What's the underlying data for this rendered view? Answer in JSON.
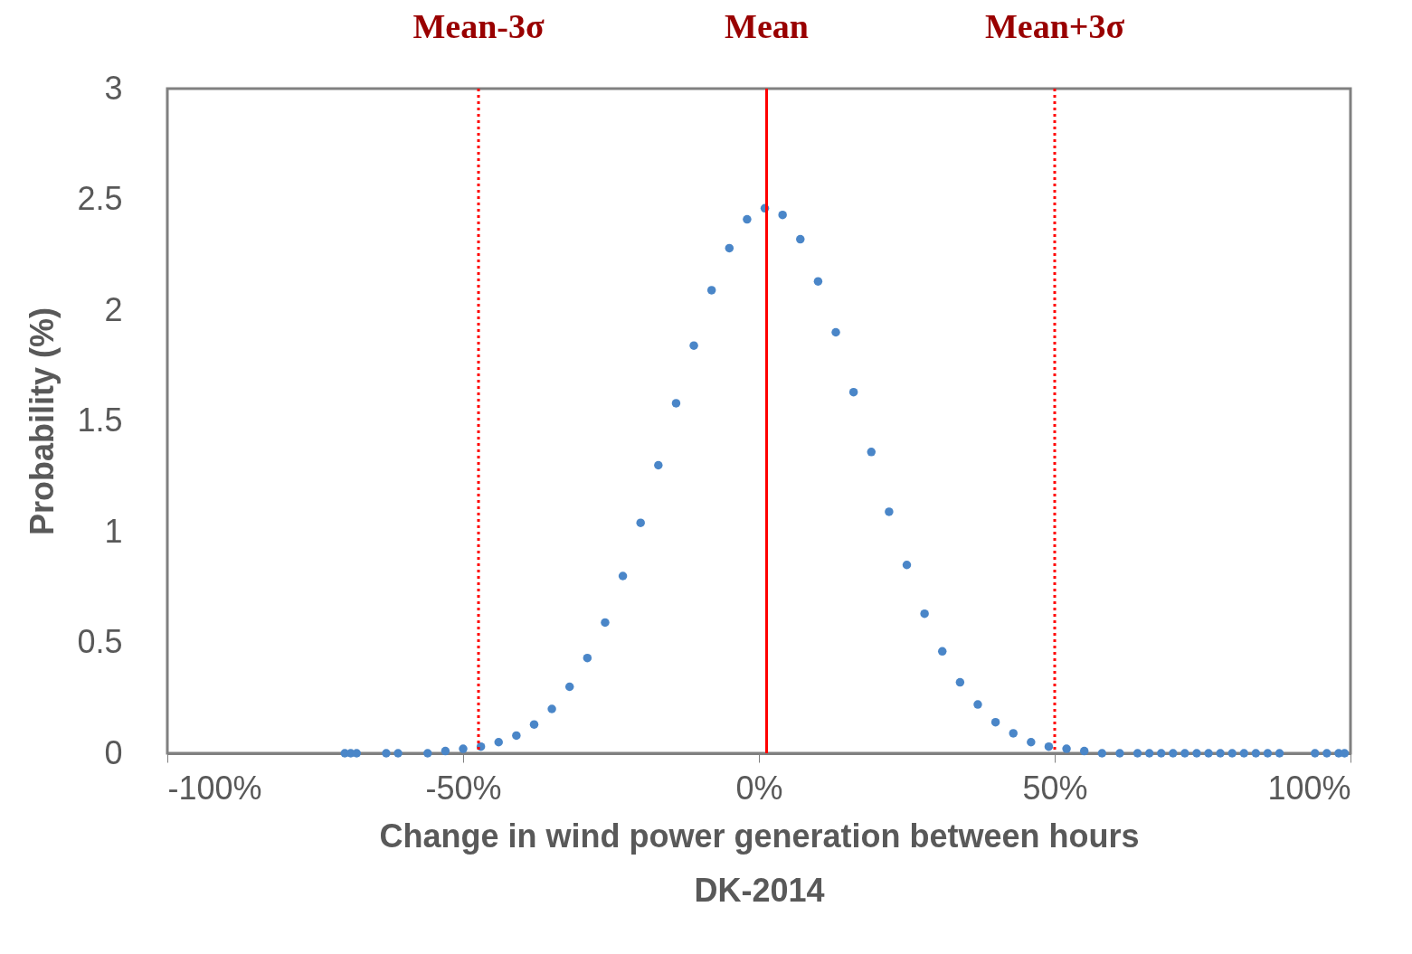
{
  "chart_data": {
    "type": "scatter",
    "xlabel": "Change in wind power generation between hours\nDK-2014",
    "ylabel": "Probability (%)",
    "x": [
      -70,
      -69,
      -68,
      -63,
      -61,
      -56,
      -53,
      -50,
      -47,
      -44,
      -41,
      -38,
      -35,
      -32,
      -29,
      -26,
      -23,
      -20,
      -17,
      -14,
      -11,
      -8,
      -5,
      -2,
      1,
      4,
      7,
      10,
      13,
      16,
      19,
      22,
      25,
      28,
      31,
      34,
      37,
      40,
      43,
      46,
      49,
      52,
      55,
      58,
      61,
      64,
      66,
      68,
      70,
      72,
      74,
      76,
      78,
      80,
      82,
      84,
      86,
      88,
      94,
      96,
      98,
      99
    ],
    "series": [
      {
        "color": "#4a86c8",
        "values": [
          0,
          0,
          0,
          0,
          0,
          0,
          0.01,
          0.02,
          0.03,
          0.05,
          0.08,
          0.13,
          0.2,
          0.3,
          0.43,
          0.59,
          0.8,
          1.04,
          1.3,
          1.58,
          1.84,
          2.09,
          2.28,
          2.41,
          2.46,
          2.43,
          2.32,
          2.13,
          1.9,
          1.63,
          1.36,
          1.09,
          0.85,
          0.63,
          0.46,
          0.32,
          0.22,
          0.14,
          0.09,
          0.05,
          0.03,
          0.02,
          0.01,
          0,
          0,
          0,
          0,
          0,
          0,
          0,
          0,
          0,
          0,
          0,
          0,
          0,
          0,
          0,
          0,
          0,
          0,
          0
        ]
      }
    ],
    "xlim": [
      -100,
      100
    ],
    "xticks": [
      {
        "value": -100,
        "label": "-100%"
      },
      {
        "value": -50,
        "label": "-50%"
      },
      {
        "value": 0,
        "label": "0%"
      },
      {
        "value": 50,
        "label": "50%"
      },
      {
        "value": 100,
        "label": "100%"
      }
    ],
    "ylim": [
      0,
      3
    ],
    "yticks": [
      0,
      0.5,
      1,
      1.5,
      2,
      2.5,
      3
    ],
    "marker": "circle",
    "ref_lines": [
      {
        "axis": "x",
        "value": -47.4,
        "label": "Mean-3σ",
        "color": "#ff0000",
        "line_style": "dotted"
      },
      {
        "axis": "x",
        "value": 1.3,
        "label": "Mean",
        "color": "#ff0000",
        "line_style": "solid"
      },
      {
        "axis": "x",
        "value": 50,
        "label": "Mean+3σ",
        "color": "#ff0000",
        "line_style": "dotted"
      }
    ]
  }
}
